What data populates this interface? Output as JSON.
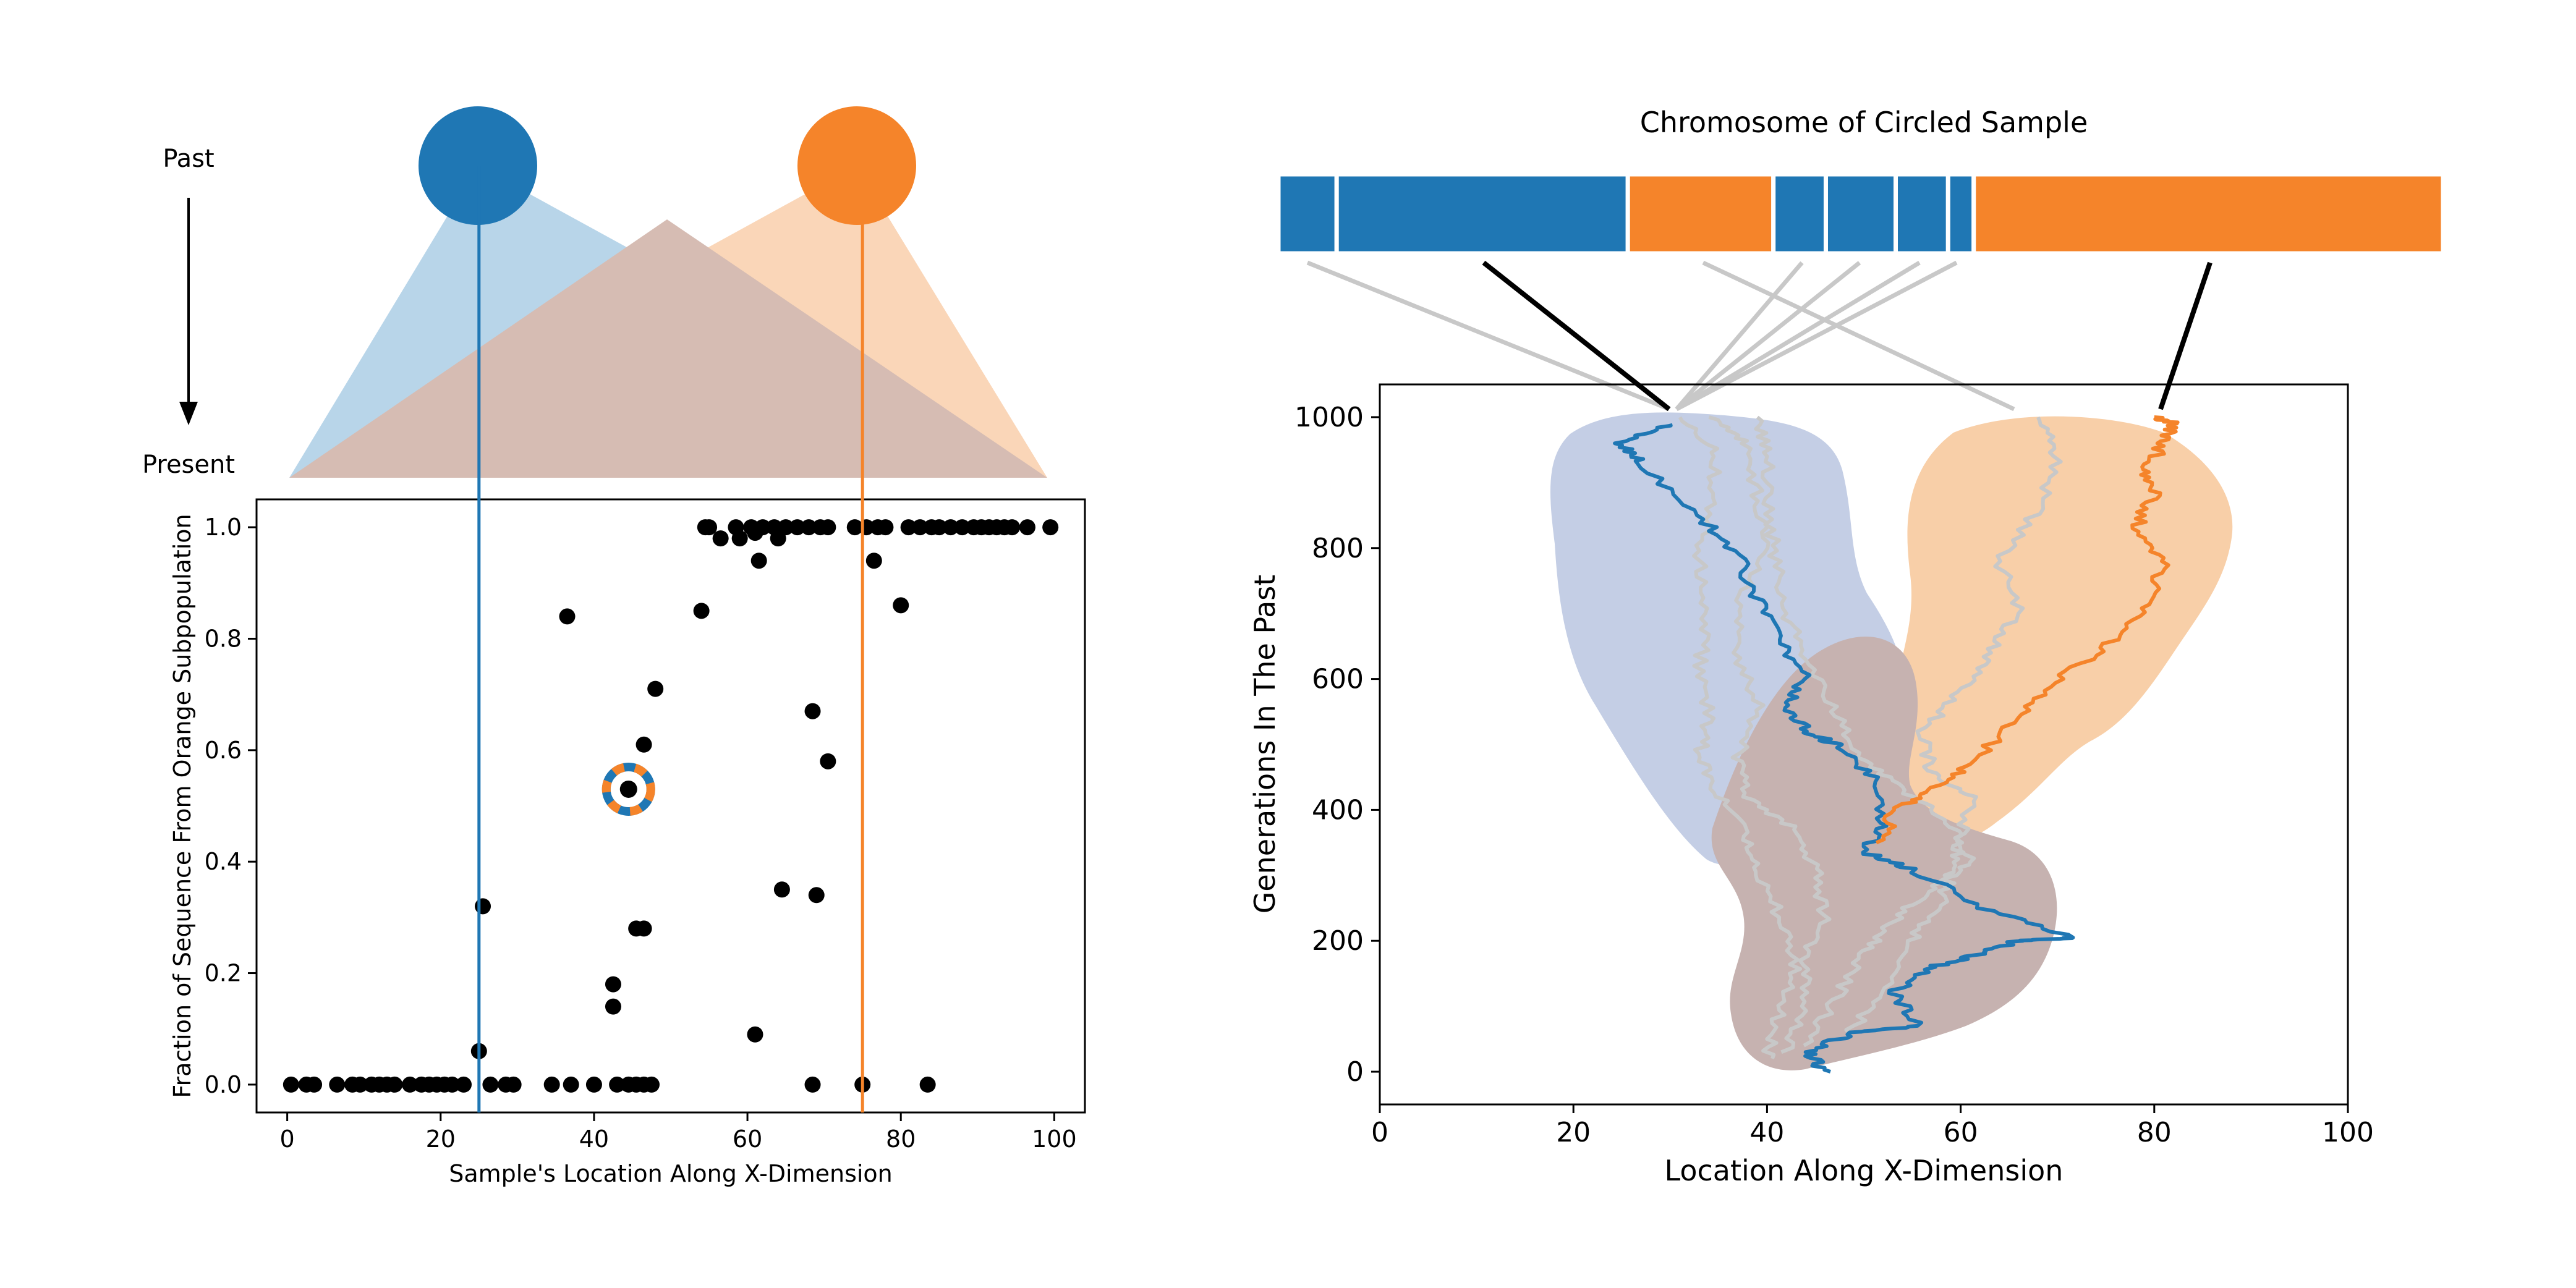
{
  "colors": {
    "blue": "#1f77b4",
    "orange": "#f5842a",
    "blue_light": "#b8d5e9",
    "orange_light": "#fad6b8",
    "overlap": "#d6bcb3",
    "blue_cloud": "#c4cee5",
    "orange_cloud": "#f8cfa8",
    "cloud_overlap": "#c6b2b0",
    "grey_line": "#c8c8c8",
    "black": "#000000"
  },
  "schematic": {
    "past_label": "Past",
    "present_label": "Present",
    "blue_source": {
      "x": 25
    },
    "orange_source": {
      "x": 75
    }
  },
  "chart_data": [
    {
      "type": "scatter",
      "title": "",
      "xlabel": "Sample's Location Along X-Dimension",
      "ylabel": "Fraction of Sequence From Orange Subpopulation",
      "xlim": [
        -4,
        104
      ],
      "ylim": [
        -0.05,
        1.05
      ],
      "xticks": [
        "0",
        "20",
        "40",
        "60",
        "80",
        "100"
      ],
      "yticks": [
        "0.0",
        "0.2",
        "0.4",
        "0.6",
        "0.8",
        "1.0"
      ],
      "xtick_values": [
        0,
        20,
        40,
        60,
        80,
        100
      ],
      "ytick_values": [
        0.0,
        0.2,
        0.4,
        0.6,
        0.8,
        1.0
      ],
      "vlines": [
        {
          "x": 25,
          "color": "blue"
        },
        {
          "x": 75,
          "color": "orange"
        }
      ],
      "highlighted_sample": {
        "x": 44.5,
        "y": 0.53
      },
      "points": [
        [
          0.5,
          0
        ],
        [
          2.5,
          0
        ],
        [
          3.5,
          0
        ],
        [
          6.5,
          0
        ],
        [
          8.5,
          0
        ],
        [
          9.5,
          0
        ],
        [
          11,
          0
        ],
        [
          12,
          0
        ],
        [
          13,
          0
        ],
        [
          14,
          0
        ],
        [
          16,
          0
        ],
        [
          17.5,
          0
        ],
        [
          18.5,
          0
        ],
        [
          19.5,
          0
        ],
        [
          20.5,
          0
        ],
        [
          21.5,
          0
        ],
        [
          23,
          0
        ],
        [
          26.5,
          0
        ],
        [
          28.5,
          0
        ],
        [
          29.5,
          0
        ],
        [
          34.5,
          0
        ],
        [
          37,
          0
        ],
        [
          40,
          0
        ],
        [
          43,
          0
        ],
        [
          44.5,
          0
        ],
        [
          45.5,
          0
        ],
        [
          46.5,
          0
        ],
        [
          47.5,
          0
        ],
        [
          68.5,
          0
        ],
        [
          75,
          0
        ],
        [
          83.5,
          0
        ],
        [
          25,
          0.06
        ],
        [
          61,
          0.09
        ],
        [
          42.5,
          0.14
        ],
        [
          42.5,
          0.18
        ],
        [
          45.5,
          0.28
        ],
        [
          46.5,
          0.28
        ],
        [
          25.5,
          0.32
        ],
        [
          64.5,
          0.35
        ],
        [
          69,
          0.34
        ],
        [
          70.5,
          0.58
        ],
        [
          46.5,
          0.61
        ],
        [
          68.5,
          0.67
        ],
        [
          48,
          0.71
        ],
        [
          54,
          0.85
        ],
        [
          80,
          0.86
        ],
        [
          36.5,
          0.84
        ],
        [
          61.5,
          0.94
        ],
        [
          76.5,
          0.94
        ],
        [
          56.5,
          0.98
        ],
        [
          64,
          0.98
        ],
        [
          59,
          0.98
        ],
        [
          61,
          0.99
        ],
        [
          54.5,
          1
        ],
        [
          55,
          1
        ],
        [
          58.5,
          1
        ],
        [
          60.5,
          1
        ],
        [
          62,
          1
        ],
        [
          63.5,
          1
        ],
        [
          65,
          1
        ],
        [
          66.5,
          1
        ],
        [
          68,
          1
        ],
        [
          69.5,
          1
        ],
        [
          70.5,
          1
        ],
        [
          74,
          1
        ],
        [
          75.5,
          1
        ],
        [
          77,
          1
        ],
        [
          78,
          1
        ],
        [
          81,
          1
        ],
        [
          82.5,
          1
        ],
        [
          84,
          1
        ],
        [
          85,
          1
        ],
        [
          86.5,
          1
        ],
        [
          88,
          1
        ],
        [
          89.5,
          1
        ],
        [
          90.5,
          1
        ],
        [
          91.5,
          1
        ],
        [
          92.5,
          1
        ],
        [
          93.5,
          1
        ],
        [
          94.5,
          1
        ],
        [
          96.5,
          1
        ],
        [
          99.5,
          1
        ]
      ]
    },
    {
      "type": "line",
      "title": "Chromosome of Circled Sample",
      "xlabel": "Location Along X-Dimension",
      "ylabel": "Generations In The Past",
      "xlim": [
        0,
        100
      ],
      "ylim": [
        -50,
        1050
      ],
      "xticks": [
        "0",
        "20",
        "40",
        "60",
        "80",
        "100"
      ],
      "yticks": [
        "0",
        "200",
        "400",
        "600",
        "800",
        "1000"
      ],
      "xtick_values": [
        0,
        20,
        40,
        60,
        80,
        100
      ],
      "ytick_values": [
        0,
        200,
        400,
        600,
        800,
        1000
      ],
      "chromosome_segments": [
        {
          "start": 0.0,
          "end": 0.05,
          "color": "blue"
        },
        {
          "start": 0.05,
          "end": 0.3,
          "color": "blue"
        },
        {
          "start": 0.3,
          "end": 0.425,
          "color": "orange"
        },
        {
          "start": 0.425,
          "end": 0.47,
          "color": "blue"
        },
        {
          "start": 0.47,
          "end": 0.53,
          "color": "blue"
        },
        {
          "start": 0.53,
          "end": 0.575,
          "color": "blue"
        },
        {
          "start": 0.575,
          "end": 0.597,
          "color": "blue"
        },
        {
          "start": 0.597,
          "end": 1.0,
          "color": "orange"
        }
      ],
      "series": [
        {
          "color": "blue",
          "points": [
            [
              46,
              0
            ],
            [
              44,
              30
            ],
            [
              49,
              60
            ],
            [
              56,
              70
            ],
            [
              53,
              120
            ],
            [
              57,
              160
            ],
            [
              62,
              180
            ],
            [
              66,
              200
            ],
            [
              72,
              205
            ],
            [
              62,
              250
            ],
            [
              55,
              310
            ],
            [
              50,
              335
            ],
            [
              52,
              380
            ],
            [
              51,
              450
            ],
            [
              47,
              500
            ],
            [
              44,
              520
            ],
            [
              42,
              560
            ],
            [
              44,
              600
            ],
            [
              41,
              660
            ],
            [
              39,
              720
            ],
            [
              37,
              790
            ],
            [
              33,
              850
            ],
            [
              27,
              930
            ],
            [
              25,
              960
            ],
            [
              30,
              990
            ]
          ]
        },
        {
          "color": "orange",
          "points": [
            [
              52,
              350
            ],
            [
              53,
              400
            ],
            [
              57,
              430
            ],
            [
              61,
              470
            ],
            [
              66,
              540
            ],
            [
              70,
              600
            ],
            [
              76,
              660
            ],
            [
              80,
              720
            ],
            [
              81,
              780
            ],
            [
              78,
              830
            ],
            [
              80,
              880
            ],
            [
              79,
              920
            ],
            [
              81,
              960
            ],
            [
              82,
              990
            ],
            [
              80,
              1000
            ]
          ]
        },
        {
          "color": "grey",
          "points": [
            [
              40,
              20
            ],
            [
              41,
              80
            ],
            [
              43,
              150
            ],
            [
              42,
              220
            ],
            [
              39,
              300
            ],
            [
              38,
              360
            ],
            [
              35,
              420
            ],
            [
              33,
              480
            ],
            [
              34,
              540
            ],
            [
              33,
              620
            ],
            [
              34,
              700
            ],
            [
              33,
              780
            ],
            [
              34,
              860
            ],
            [
              35,
              940
            ],
            [
              31,
              1000
            ]
          ]
        },
        {
          "color": "grey",
          "points": [
            [
              42,
              30
            ],
            [
              44,
              100
            ],
            [
              44,
              170
            ],
            [
              46,
              240
            ],
            [
              45,
              310
            ],
            [
              43,
              370
            ],
            [
              38,
              420
            ],
            [
              37,
              480
            ],
            [
              39,
              560
            ],
            [
              37,
              640
            ],
            [
              37,
              720
            ],
            [
              40,
              800
            ],
            [
              39,
              880
            ],
            [
              38,
              960
            ],
            [
              34,
              1000
            ]
          ]
        },
        {
          "color": "grey",
          "points": [
            [
              44,
              40
            ],
            [
              47,
              110
            ],
            [
              50,
              180
            ],
            [
              53,
              230
            ],
            [
              57,
              280
            ],
            [
              61,
              320
            ],
            [
              59,
              380
            ],
            [
              54,
              430
            ],
            [
              50,
              480
            ],
            [
              47,
              550
            ],
            [
              44,
              630
            ],
            [
              42,
              700
            ],
            [
              41,
              780
            ],
            [
              40,
              860
            ],
            [
              40,
              940
            ],
            [
              39,
              1000
            ]
          ]
        },
        {
          "color": "grey",
          "points": [
            [
              48,
              50
            ],
            [
              52,
              120
            ],
            [
              55,
              200
            ],
            [
              58,
              260
            ],
            [
              59,
              300
            ],
            [
              60,
              350
            ],
            [
              61,
              420
            ],
            [
              57,
              460
            ],
            [
              56,
              520
            ],
            [
              60,
              580
            ],
            [
              63,
              640
            ],
            [
              66,
              700
            ],
            [
              64,
              780
            ],
            [
              68,
              860
            ],
            [
              70,
              940
            ],
            [
              68,
              1000
            ]
          ]
        }
      ],
      "clouds": [
        {
          "color": "blue"
        },
        {
          "color": "orange"
        },
        {
          "color": "overlap"
        }
      ]
    }
  ]
}
